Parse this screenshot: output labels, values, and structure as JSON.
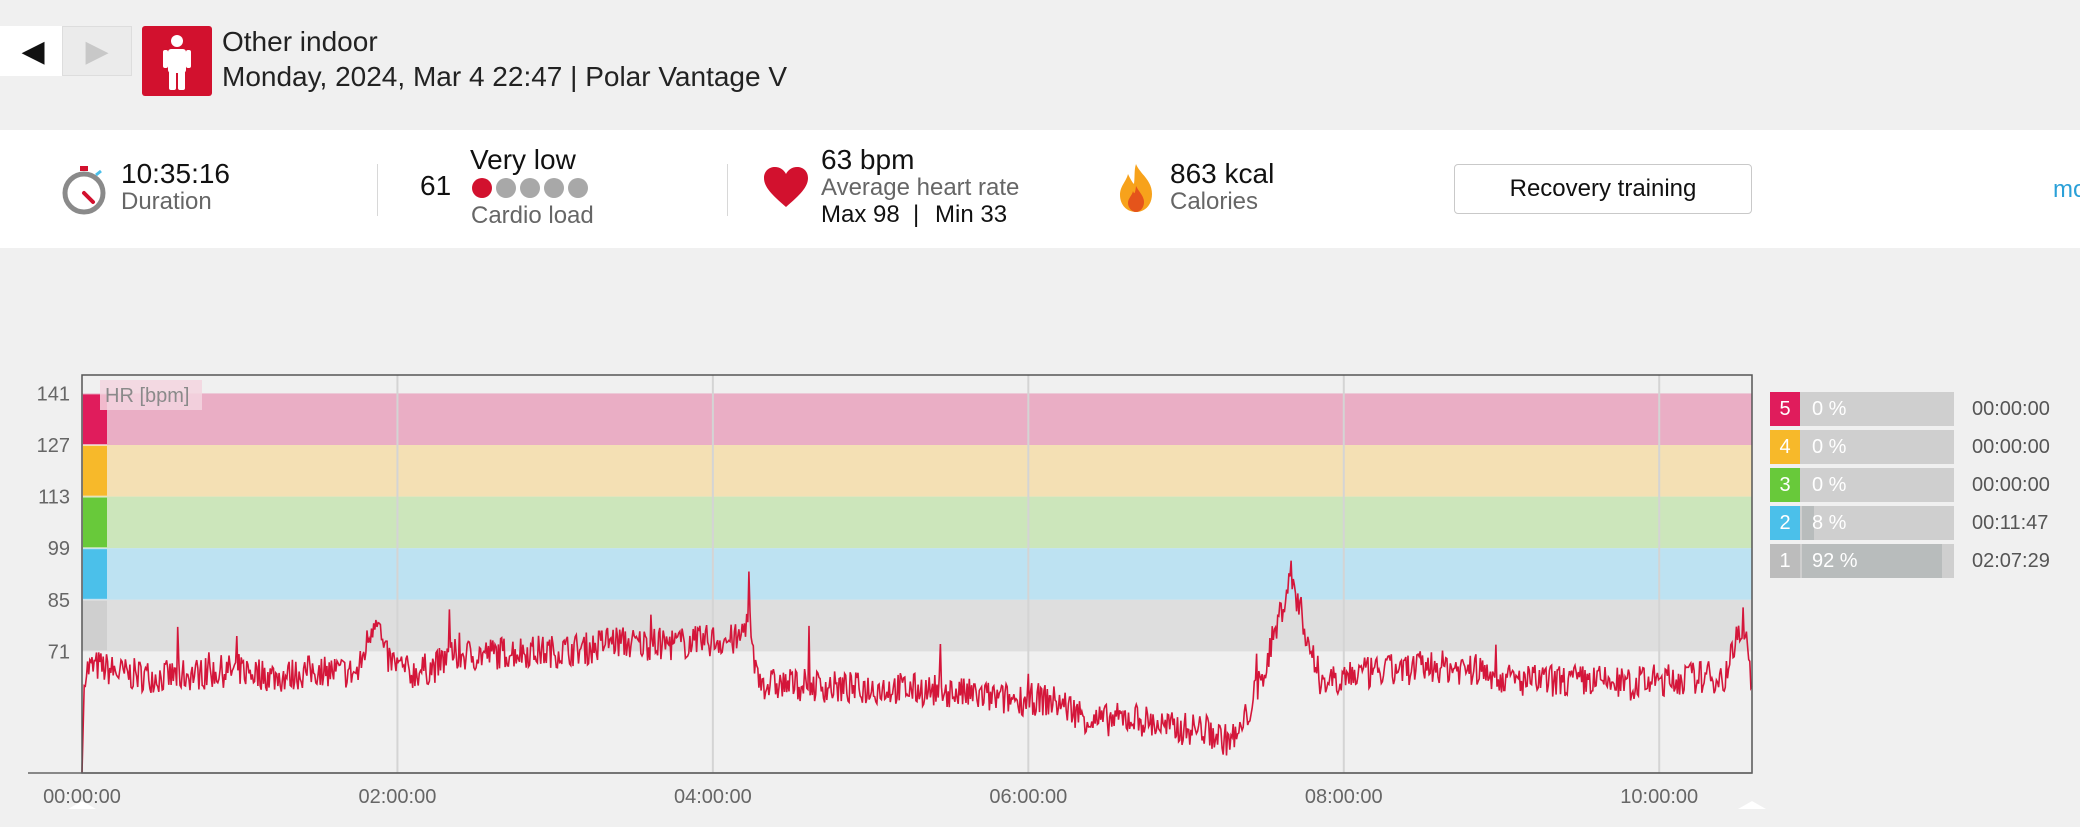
{
  "nav": {
    "prev_icon": "◀",
    "next_icon": "▶"
  },
  "header": {
    "sport_icon": "person-standing-icon",
    "title": "Other indoor",
    "subtitle": "Monday, 2024, Mar 4 22:47 | Polar Vantage V"
  },
  "summary": {
    "duration": {
      "value": "10:35:16",
      "label": "Duration",
      "icon": "stopwatch-icon"
    },
    "cardio_load": {
      "value": "61",
      "level": "Very low",
      "label": "Cardio load",
      "dots_filled": 1,
      "dots_total": 5
    },
    "heart_rate": {
      "value": "63 bpm",
      "label": "Average heart rate",
      "max_label": "Max 98",
      "separator": "|",
      "min_label": "Min 33",
      "icon": "heart-icon"
    },
    "calories": {
      "value": "863 kcal",
      "label": "Calories",
      "icon": "flame-icon"
    },
    "benefit_button": "Recovery training",
    "more_link": "mo"
  },
  "colors": {
    "accent": "#d2112e",
    "hr_line": "#d4163a",
    "zone5": "#e01c5c",
    "zone4": "#f7b92a",
    "zone3": "#68c93a",
    "zone2": "#4bc0ea",
    "zone1": "#cfcfcf"
  },
  "chart_data": {
    "type": "line",
    "title": "HR [bpm]",
    "xlabel": "",
    "ylabel": "HR [bpm]",
    "x_tick_labels": [
      "00:00:00",
      "02:00:00",
      "04:00:00",
      "06:00:00",
      "08:00:00",
      "10:00:00"
    ],
    "y_ticks": [
      141,
      127,
      113,
      99,
      85,
      71
    ],
    "xlim_minutes": [
      0,
      635.3
    ],
    "ylim": [
      38,
      146
    ],
    "grid": true,
    "zones": [
      {
        "zone": 5,
        "from": 127,
        "to": 141
      },
      {
        "zone": 4,
        "from": 113,
        "to": 127
      },
      {
        "zone": 3,
        "from": 99,
        "to": 113
      },
      {
        "zone": 2,
        "from": 85,
        "to": 99
      },
      {
        "zone": 1,
        "from": 71,
        "to": 85
      }
    ],
    "series": [
      {
        "x_minutes": [
          0,
          1,
          6,
          15,
          30,
          45,
          60,
          75,
          90,
          105,
          112,
          115,
          118,
          125,
          135,
          140,
          150,
          165,
          180,
          195,
          200,
          210,
          225,
          240,
          250,
          254,
          256,
          260,
          275,
          290,
          310,
          330,
          350,
          365,
          372,
          385,
          400,
          415,
          426,
          435,
          440,
          450,
          460,
          470,
          473,
          478,
          484,
          490,
          500,
          515,
          530,
          545,
          560,
          575,
          590,
          595,
          600,
          615,
          625,
          632,
          635
        ],
        "y": [
          38,
          66,
          67,
          65,
          64,
          65,
          66,
          64,
          66,
          65,
          82,
          70,
          68,
          65,
          67,
          70,
          70,
          71,
          71,
          72,
          74,
          73,
          73,
          74,
          74,
          82,
          66,
          62,
          62,
          61,
          61,
          60,
          58,
          58,
          57,
          52,
          53,
          50,
          50,
          47,
          48,
          66,
          92,
          64,
          63,
          64,
          65,
          65,
          66,
          67,
          66,
          63,
          63,
          63,
          62,
          63,
          63,
          64,
          64,
          80,
          63
        ]
      }
    ]
  },
  "zone_table": [
    {
      "zone": "5",
      "percent": "0 %",
      "fraction": 0.0,
      "time": "00:00:00"
    },
    {
      "zone": "4",
      "percent": "0 %",
      "fraction": 0.0,
      "time": "00:00:00"
    },
    {
      "zone": "3",
      "percent": "0 %",
      "fraction": 0.0,
      "time": "00:00:00"
    },
    {
      "zone": "2",
      "percent": "8 %",
      "fraction": 0.08,
      "time": "00:11:47"
    },
    {
      "zone": "1",
      "percent": "92 %",
      "fraction": 0.92,
      "time": "02:07:29"
    }
  ]
}
